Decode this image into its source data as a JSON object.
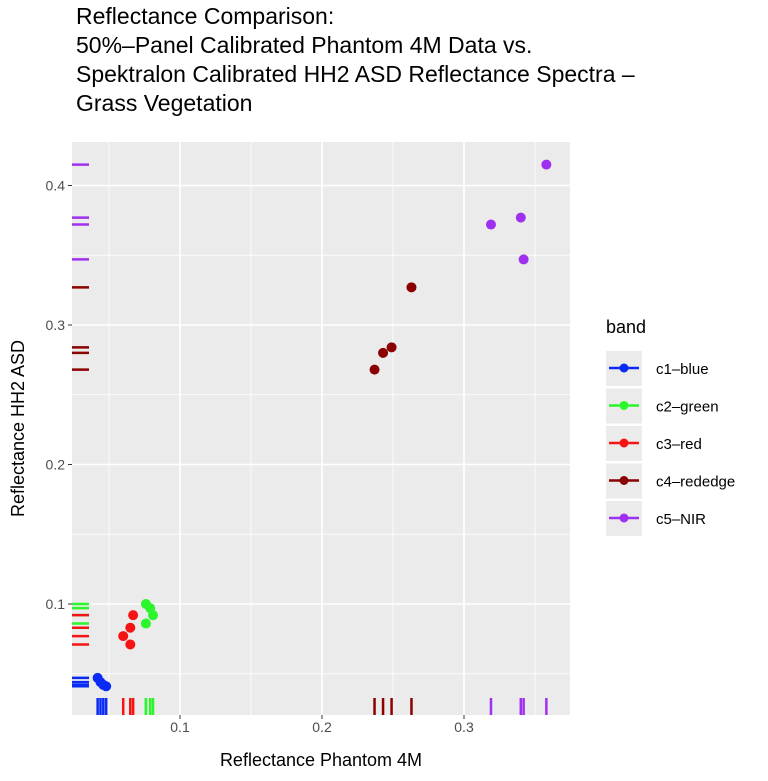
{
  "chart_data": {
    "type": "scatter",
    "title": [
      "Reflectance Comparison:",
      "50%–Panel Calibrated Phantom 4M Data vs.",
      "Spektralon Calibrated HH2 ASD Reflectance Spectra –",
      "Grass Vegetation"
    ],
    "xlabel": "Reflectance Phantom 4M",
    "ylabel": "Reflectance HH2 ASD",
    "xlim": [
      0.024,
      0.375
    ],
    "ylim": [
      0.02,
      0.432
    ],
    "xticks": [
      {
        "v": 0.1,
        "label": "0.1"
      },
      {
        "v": 0.2,
        "label": "0.2"
      },
      {
        "v": 0.3,
        "label": "0.3"
      }
    ],
    "yticks": [
      {
        "v": 0.1,
        "label": "0.1"
      },
      {
        "v": 0.2,
        "label": "0.2"
      },
      {
        "v": 0.3,
        "label": "0.3"
      },
      {
        "v": 0.4,
        "label": "0.4"
      }
    ],
    "grid": true,
    "rug": true,
    "legend": {
      "title": "band",
      "position": "right"
    },
    "series": [
      {
        "name": "c1–blue",
        "color": "#0A2BF5",
        "x": [
          0.042,
          0.044,
          0.048,
          0.046
        ],
        "y": [
          0.047,
          0.044,
          0.041,
          0.042
        ]
      },
      {
        "name": "c2–green",
        "color": "#2BF52B",
        "x": [
          0.076,
          0.079,
          0.081,
          0.076
        ],
        "y": [
          0.1,
          0.097,
          0.092,
          0.086
        ]
      },
      {
        "name": "c3–red",
        "color": "#F51414",
        "x": [
          0.067,
          0.065,
          0.06,
          0.065
        ],
        "y": [
          0.092,
          0.083,
          0.077,
          0.071
        ]
      },
      {
        "name": "c4–rededge",
        "color": "#8B0000",
        "x": [
          0.263,
          0.249,
          0.243,
          0.237
        ],
        "y": [
          0.327,
          0.284,
          0.28,
          0.268
        ]
      },
      {
        "name": "c5–NIR",
        "color": "#A030F0",
        "x": [
          0.358,
          0.319,
          0.34,
          0.342
        ],
        "y": [
          0.415,
          0.372,
          0.377,
          0.347
        ]
      }
    ]
  }
}
